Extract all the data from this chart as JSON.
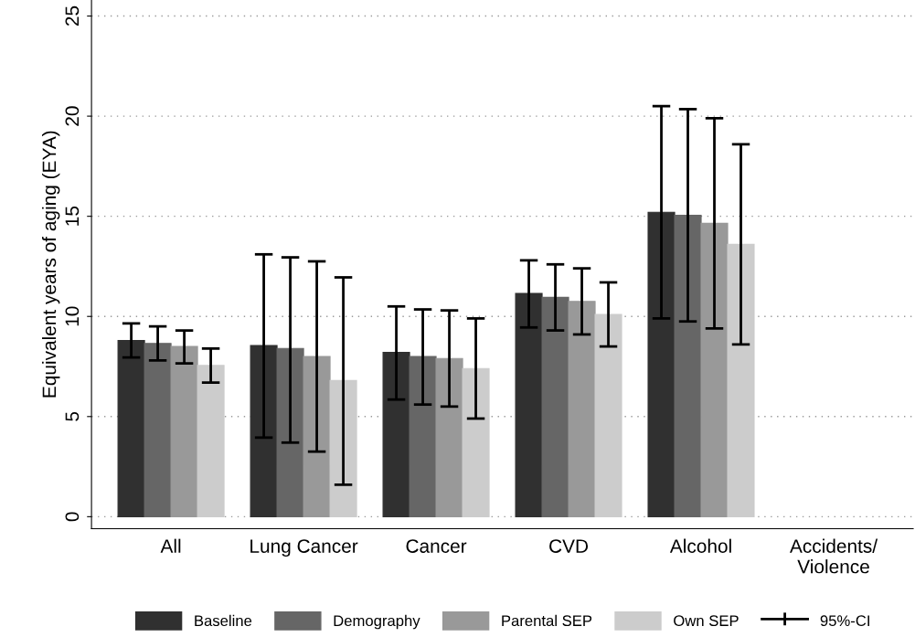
{
  "chart_data": {
    "type": "bar",
    "ylabel": "Equivalent years of aging (EYA)",
    "categories": [
      "All",
      "Lung Cancer",
      "Cancer",
      "CVD",
      "Alcohol",
      "Accidents/\nViolence"
    ],
    "series": [
      {
        "name": "Baseline",
        "color": "#303030",
        "values": [
          8.8,
          8.55,
          8.2,
          11.15,
          15.2,
          null
        ],
        "errors": [
          [
            7.95,
            9.65
          ],
          [
            3.95,
            13.1
          ],
          [
            5.85,
            10.5
          ],
          [
            9.45,
            12.8
          ],
          [
            9.9,
            20.5
          ],
          null
        ]
      },
      {
        "name": "Demography",
        "color": "#666666",
        "values": [
          8.65,
          8.4,
          8.0,
          10.95,
          15.05,
          null
        ],
        "errors": [
          [
            7.8,
            9.5
          ],
          [
            3.7,
            12.95
          ],
          [
            5.6,
            10.35
          ],
          [
            9.3,
            12.6
          ],
          [
            9.75,
            20.35
          ],
          null
        ]
      },
      {
        "name": "Parental SEP",
        "color": "#999999",
        "values": [
          8.5,
          8.0,
          7.9,
          10.75,
          14.65,
          null
        ],
        "errors": [
          [
            7.65,
            9.3
          ],
          [
            3.25,
            12.75
          ],
          [
            5.5,
            10.3
          ],
          [
            9.1,
            12.4
          ],
          [
            9.4,
            19.9
          ],
          null
        ]
      },
      {
        "name": "Own SEP",
        "color": "#cccccc",
        "values": [
          7.55,
          6.8,
          7.4,
          10.1,
          13.6,
          null
        ],
        "errors": [
          [
            6.7,
            8.4
          ],
          [
            1.6,
            11.95
          ],
          [
            4.9,
            9.9
          ],
          [
            8.5,
            11.7
          ],
          [
            8.6,
            18.6
          ],
          null
        ]
      }
    ],
    "annotations": [
      "95%-CI"
    ],
    "ylim": [
      -0.6,
      25.8
    ],
    "yticks": [
      0,
      5,
      10,
      15,
      20,
      25
    ],
    "grid": "y",
    "legend": "bottom"
  }
}
